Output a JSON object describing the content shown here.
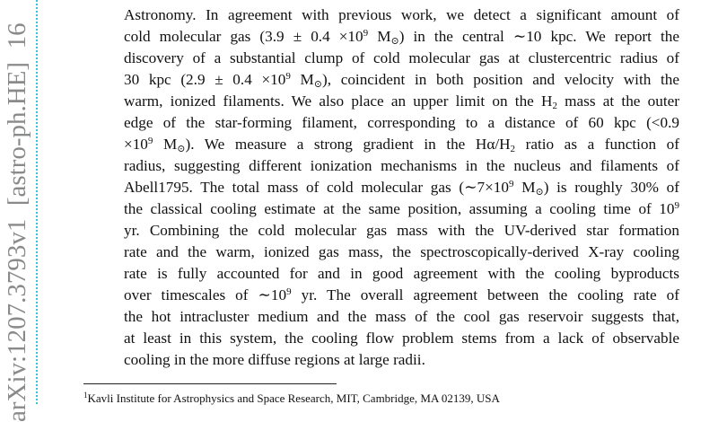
{
  "sidebar": {
    "stamp": "arXiv:1207.3793v1  [astro-ph.HE]  16"
  },
  "abstract": {
    "lines": [
      [
        "Astronomy. In agreement with previous work, we detect a significant amount of"
      ],
      [
        "cold molecular gas (3.9 ± 0.4 ×10",
        {
          "sup": "9"
        },
        " M",
        {
          "sub": "⊙"
        },
        ") in the central ∼10 kpc. We report the"
      ],
      [
        "discovery of a substantial clump of cold molecular gas at clustercentric radius of"
      ],
      [
        "30 kpc (2.9 ± 0.4 ×10",
        {
          "sup": "9"
        },
        " M",
        {
          "sub": "⊙"
        },
        "), coincident in both position and velocity with the"
      ],
      [
        "warm, ionized filaments. We also place an upper limit on the H",
        {
          "sub": "2"
        },
        " mass at the outer"
      ],
      [
        "edge of the star-forming filament, corresponding to a distance of 60 kpc (<0.9"
      ],
      [
        "×10",
        {
          "sup": "9"
        },
        " M",
        {
          "sub": "⊙"
        },
        "). We measure a strong gradient in the Hα/H",
        {
          "sub": "2"
        },
        " ratio as a function of"
      ],
      [
        "radius, suggesting different ionization mechanisms in the nucleus and filaments of"
      ],
      [
        "Abell1795. The total mass of cold molecular gas (∼7×10",
        {
          "sup": "9"
        },
        " M",
        {
          "sub": "⊙"
        },
        ") is roughly 30% of"
      ],
      [
        "the classical cooling estimate at the same position, assuming a cooling time of 10",
        {
          "sup": "9"
        }
      ],
      [
        "yr. Combining the cold molecular gas mass with the UV-derived star formation"
      ],
      [
        "rate and the warm, ionized gas mass, the spectroscopically-derived X-ray cooling"
      ],
      [
        "rate is fully accounted for and in good agreement with the cooling byproducts"
      ],
      [
        "over timescales of ∼10",
        {
          "sup": "9"
        },
        " yr.  The overall agreement between the cooling rate of"
      ],
      [
        "the hot intracluster medium and the mass of the cool gas reservoir suggests that,"
      ],
      [
        "at least in this system, the cooling flow problem stems from a lack of observable"
      ],
      [
        "cooling in the more diffuse regions at large radii."
      ]
    ]
  },
  "footnote": [
    {
      "sup": "1"
    },
    "Kavli Institute for Astrophysics and Space Research, MIT, Cambridge, MA 02139, USA"
  ]
}
